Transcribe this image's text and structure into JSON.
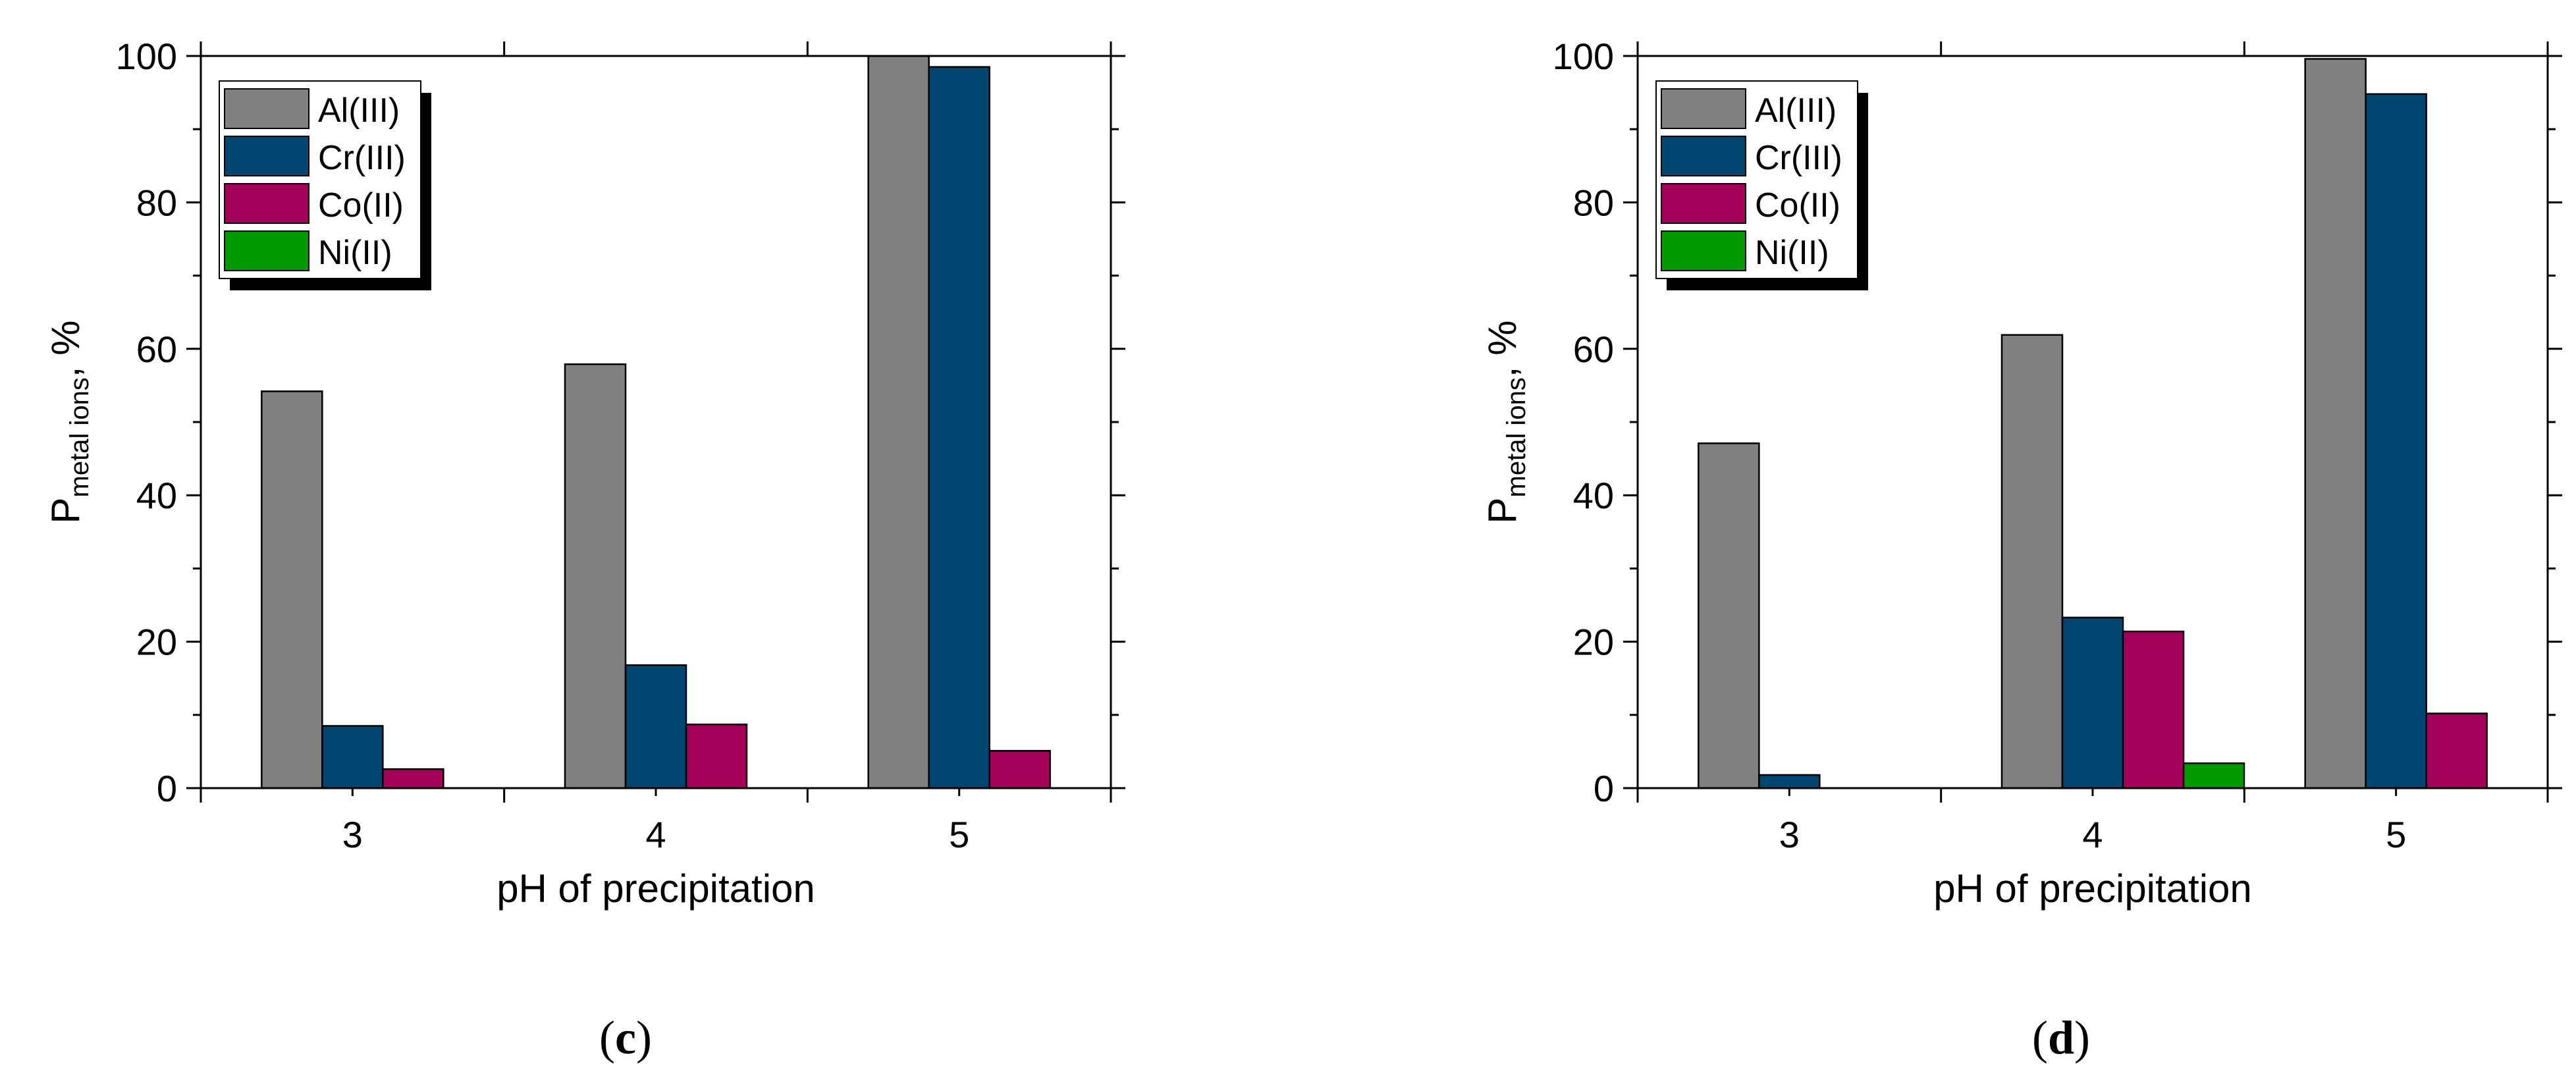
{
  "chart_data": [
    {
      "type": "bar",
      "panel_label": "c",
      "categories": [
        "3",
        "4",
        "5"
      ],
      "series": [
        {
          "name": "Al(III)",
          "color": "#808080",
          "values": [
            54.2,
            57.9,
            100.0
          ]
        },
        {
          "name": "Cr(III)",
          "color": "#004670",
          "values": [
            8.5,
            16.8,
            98.5
          ]
        },
        {
          "name": "Co(II)",
          "color": "#a30059",
          "values": [
            2.6,
            8.7,
            5.1
          ]
        },
        {
          "name": "Ni(II)",
          "color": "#009900",
          "values": [
            0,
            0,
            0
          ]
        }
      ],
      "xlabel": "pH of precipitation",
      "ylabel_main": "P",
      "ylabel_sub": "metal ions",
      "ylabel_suffix": ", %",
      "ylim": [
        0,
        100
      ],
      "yticks": [
        "0",
        "20",
        "40",
        "60",
        "80",
        "100"
      ],
      "legend_position": "top-left",
      "grid": false
    },
    {
      "type": "bar",
      "panel_label": "d",
      "categories": [
        "3",
        "4",
        "5"
      ],
      "series": [
        {
          "name": "Al(III)",
          "color": "#808080",
          "values": [
            47.1,
            61.9,
            99.6
          ]
        },
        {
          "name": "Cr(III)",
          "color": "#004670",
          "values": [
            1.8,
            23.3,
            94.8
          ]
        },
        {
          "name": "Co(II)",
          "color": "#a30059",
          "values": [
            0,
            21.4,
            10.2
          ]
        },
        {
          "name": "Ni(II)",
          "color": "#009900",
          "values": [
            0,
            3.4,
            0
          ]
        }
      ],
      "xlabel": "pH of precipitation",
      "ylabel_main": "P",
      "ylabel_sub": "metal ions",
      "ylabel_suffix": ", %",
      "ylim": [
        0,
        100
      ],
      "yticks": [
        "0",
        "20",
        "40",
        "60",
        "80",
        "100"
      ],
      "legend_position": "top-left",
      "grid": false
    }
  ]
}
